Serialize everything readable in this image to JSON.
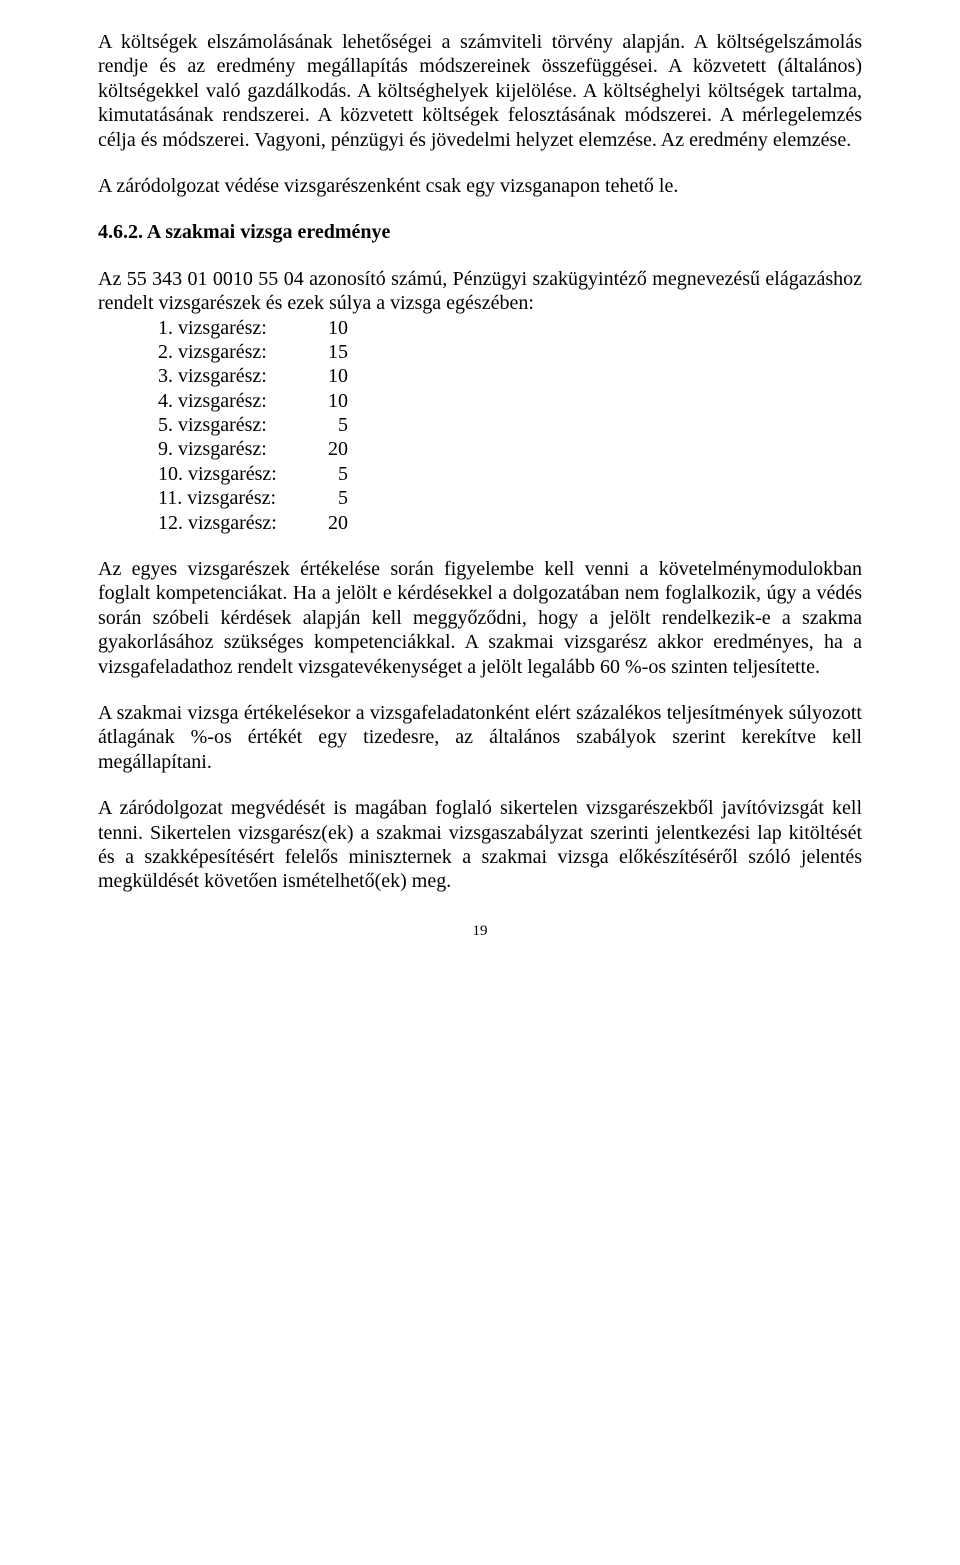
{
  "colors": {
    "background": "#ffffff",
    "text": "#000000"
  },
  "typography": {
    "font_family": "Times New Roman, serif",
    "body_size_pt": 15,
    "pagenum_size_pt": 11
  },
  "para1": "A költségek elszámolásának lehetőségei a számviteli törvény alapján. A költségelszámolás rendje és az eredmény megállapítás módszereinek összefüggései. A közvetett (általános) költségekkel való gazdálkodás. A költséghelyek kijelölése. A költséghelyi költségek tartalma, kimutatásának rendszerei. A közvetett költségek felosztásának módszerei. A mérlegelemzés célja és módszerei. Vagyoni, pénzügyi és jövedelmi helyzet elemzése. Az eredmény elemzése.",
  "para2": "A záródolgozat védése vizsgarészenként csak egy vizsganapon tehető le.",
  "heading": "4.6.2. A szakmai vizsga eredménye",
  "list": {
    "intro": "Az 55 343 01 0010 55 04 azonosító számú, Pénzügyi szakügyintéző megnevezésű elágazáshoz rendelt vizsgarészek és ezek súlya a vizsga egészében:",
    "items": [
      {
        "label": "1. vizsgarész:",
        "value": "10"
      },
      {
        "label": "2. vizsgarész:",
        "value": "15"
      },
      {
        "label": "3. vizsgarész:",
        "value": "10"
      },
      {
        "label": "4. vizsgarész:",
        "value": "10"
      },
      {
        "label": "5. vizsgarész:",
        "value": "5"
      },
      {
        "label": "9. vizsgarész:",
        "value": "20"
      },
      {
        "label": "10. vizsgarész:",
        "value": "5"
      },
      {
        "label": "11. vizsgarész:",
        "value": "5"
      },
      {
        "label": "12. vizsgarész:",
        "value": "20"
      }
    ]
  },
  "para3": "Az egyes vizsgarészek értékelése során figyelembe kell venni a követelménymodulokban foglalt kompetenciákat. Ha a jelölt e kérdésekkel a dolgozatában nem foglalkozik, úgy a védés során szóbeli kérdések alapján kell meggyőződni, hogy a jelölt rendelkezik-e a szakma gyakorlásához szükséges kompetenciákkal. A szakmai vizsgarész akkor eredményes, ha a vizsgafeladathoz rendelt vizsgatevékenységet a jelölt legalább 60 %-os szinten teljesítette.",
  "para4": "A szakmai vizsga értékelésekor a vizsgafeladatonként elért százalékos teljesítmények súlyozott átlagának %-os értékét egy tizedesre, az általános szabályok szerint kerekítve kell megállapítani.",
  "para5": "A záródolgozat megvédését is magában foglaló sikertelen vizsgarészekből javítóvizsgát kell tenni. Sikertelen vizsgarész(ek) a szakmai vizsgaszabályzat szerinti jelentkezési lap kitöltését és a szakképesítésért felelős miniszternek a szakmai vizsga előkészítéséről szóló jelentés megküldését követően ismételhető(ek) meg.",
  "page_number": "19"
}
